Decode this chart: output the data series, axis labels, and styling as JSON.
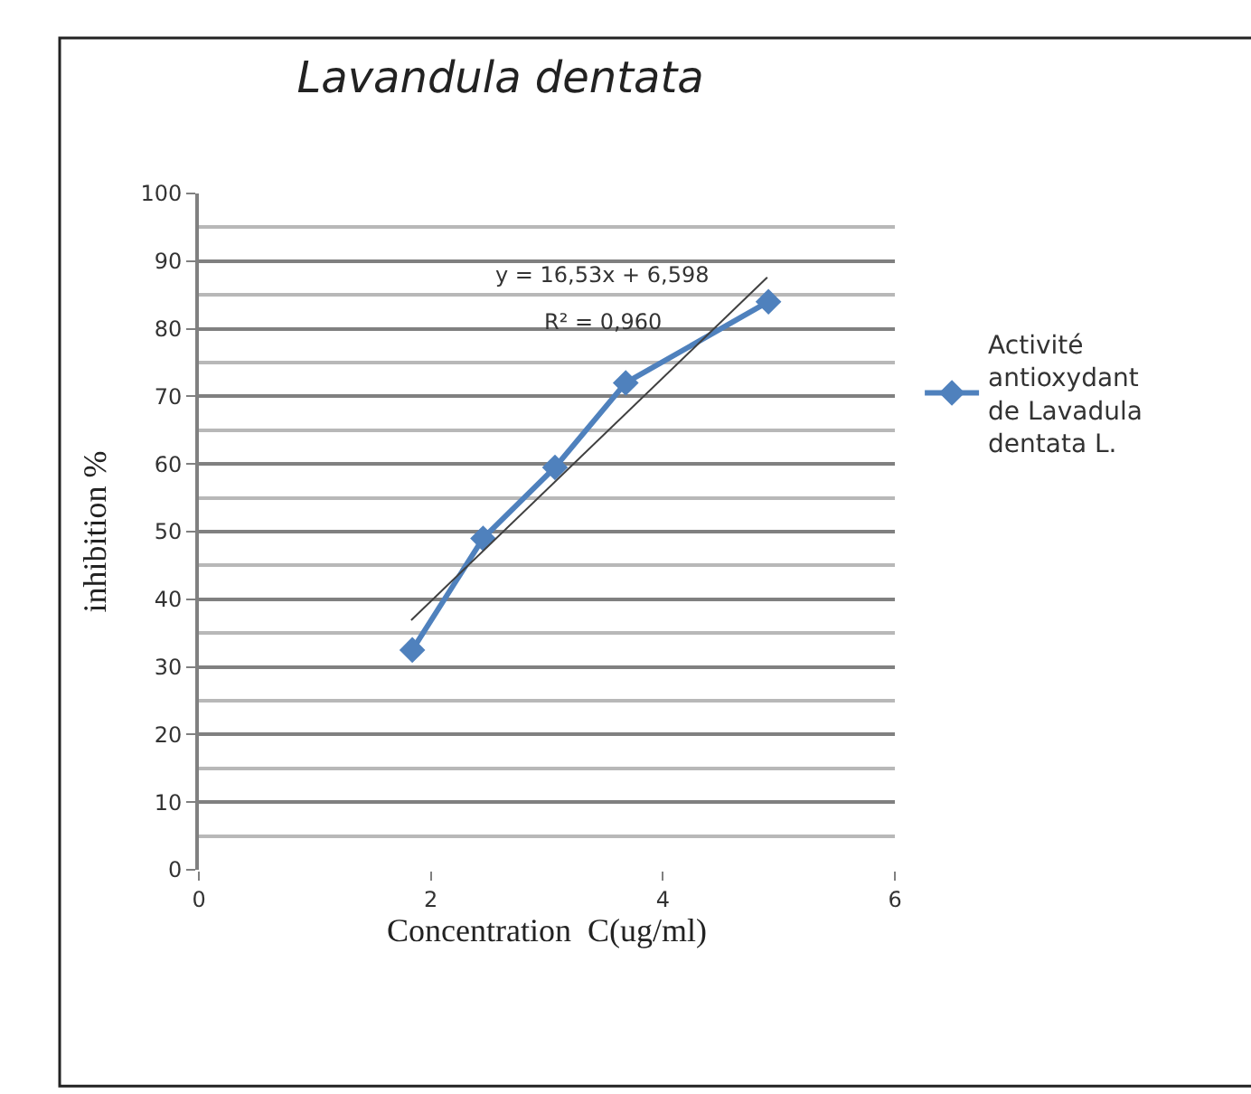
{
  "chart_data": {
    "type": "line",
    "title": "Lavandula dentata",
    "xlabel": "Concentration  C(ug/ml)",
    "ylabel": "inhibition %",
    "series": [
      {
        "name": "Activité antioxydant de Lavadula dentata L.",
        "color": "#4f81bd",
        "x": [
          1.84,
          2.45,
          3.07,
          3.68,
          4.91
        ],
        "values": [
          32.5,
          49,
          59.5,
          72,
          84
        ],
        "marker": "diamond"
      },
      {
        "type": "line",
        "color": "#404040",
        "x": [
          1.83,
          4.9
        ],
        "values": [
          36.9,
          87.6
        ],
        "marker": "none"
      }
    ],
    "annotations": [
      "y = 16,53x + 6,598",
      "R² = 0,960"
    ],
    "xlim": [
      0,
      6
    ],
    "xticks": [
      0,
      2,
      4,
      6
    ],
    "ylim": [
      0,
      100
    ],
    "yticks": [
      0,
      10,
      20,
      30,
      40,
      50,
      60,
      70,
      80,
      90,
      100
    ],
    "grid": "y",
    "legend": "right"
  }
}
